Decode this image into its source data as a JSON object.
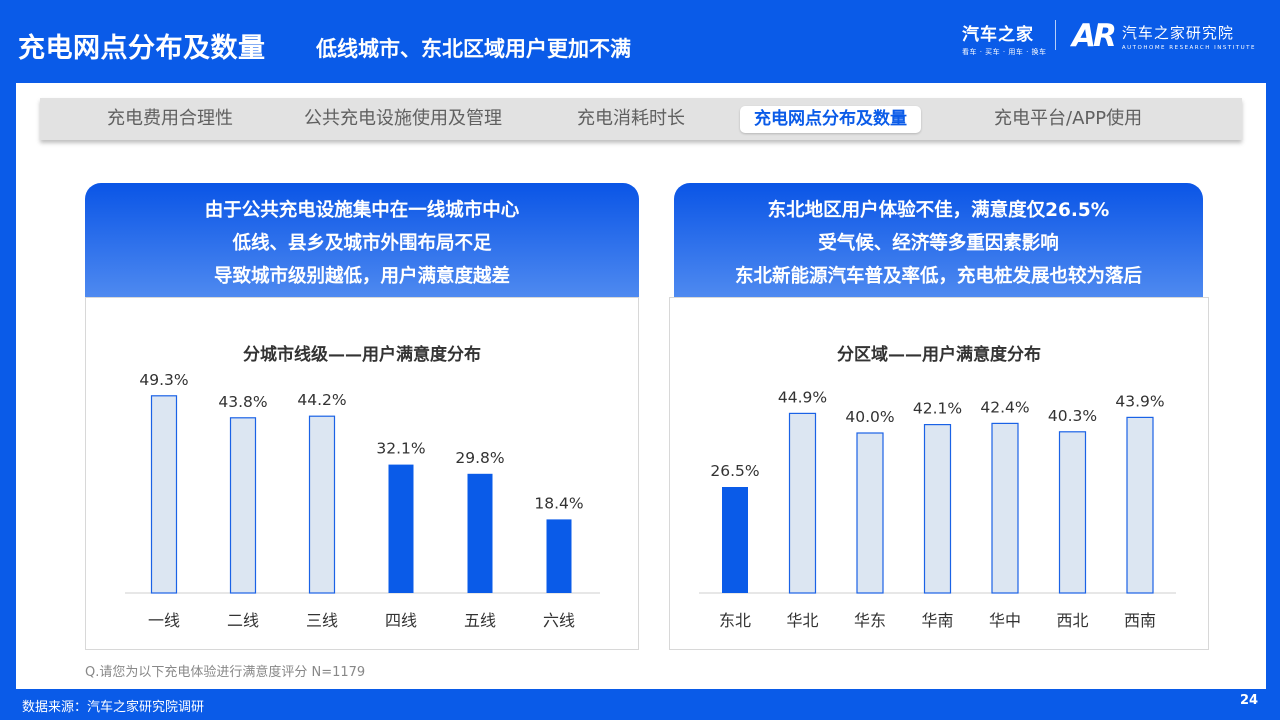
{
  "header": {
    "title": "充电网点分布及数量",
    "subtitle": "低线城市、东北区域用户更加不满",
    "logo1_main": "汽车之家",
    "logo1_small": "看车 · 买车 · 用车 · 换车",
    "logo2_mark": "AR",
    "logo2_cn": "汽车之家研究院",
    "logo2_en": "AUTOHOME RESEARCH INSTITUTE"
  },
  "tabs": [
    {
      "label": "充电费用合理性"
    },
    {
      "label": "公共充电设施使用及管理"
    },
    {
      "label": "充电消耗时长"
    },
    {
      "label": "充电网点分布及数量"
    },
    {
      "label": "充电平台/APP使用"
    }
  ],
  "active_tab": 3,
  "left_panel": {
    "lines": [
      "由于公共充电设施集中在一线城市中心",
      "低线、县乡及城市外围布局不足",
      "导致城市级别越低，用户满意度越差"
    ]
  },
  "right_panel": {
    "lines": [
      "东北地区用户体验不佳，满意度仅26.5%",
      "受气候、经济等多重因素影响",
      "东北新能源汽车普及率低，充电桩发展也较为落后"
    ]
  },
  "colors": {
    "highlight": "#0a5be8",
    "normal_fill": "#dce6f2",
    "normal_stroke": "#1a62e6"
  },
  "chart_data": [
    {
      "type": "bar",
      "title": "分城市线级——用户满意度分布",
      "categories": [
        "一线",
        "二线",
        "三线",
        "四线",
        "五线",
        "六线"
      ],
      "values": [
        49.3,
        43.8,
        44.2,
        32.1,
        29.8,
        18.4
      ],
      "value_labels": [
        "49.3%",
        "43.8%",
        "44.2%",
        "32.1%",
        "29.8%",
        "18.4%"
      ],
      "highlighted": [
        false,
        false,
        false,
        true,
        true,
        true
      ],
      "unit": "%",
      "ylim": [
        0,
        60
      ],
      "grid": false
    },
    {
      "type": "bar",
      "title": "分区域——用户满意度分布",
      "categories": [
        "东北",
        "华北",
        "华东",
        "华南",
        "华中",
        "西北",
        "西南"
      ],
      "values": [
        26.5,
        44.9,
        40.0,
        42.1,
        42.4,
        40.3,
        43.9
      ],
      "value_labels": [
        "26.5%",
        "44.9%",
        "40.0%",
        "42.1%",
        "42.4%",
        "40.3%",
        "43.9%"
      ],
      "highlighted": [
        true,
        false,
        false,
        false,
        false,
        false,
        false
      ],
      "unit": "%",
      "ylim": [
        0,
        60
      ],
      "grid": false
    }
  ],
  "footer": {
    "note": "Q.请您为以下充电体验进行满意度评分 N=1179",
    "source": "数据来源：汽车之家研究院调研",
    "page_number": "24"
  }
}
